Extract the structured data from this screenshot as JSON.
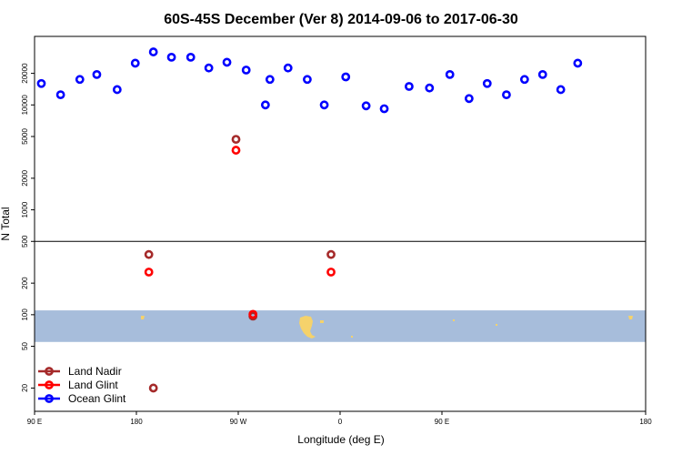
{
  "chart_data": {
    "type": "scatter",
    "title": "60S-45S December (Ver 8)   2014-09-06 to 2017-06-30",
    "xlabel": "Longitude (deg E)",
    "ylabel": "N Total",
    "y_scale": "log",
    "ylim": [
      12,
      45000
    ],
    "x_ticks": [
      "90 E",
      "180",
      "90 W",
      "0",
      "90 E",
      "180"
    ],
    "y_ticks": [
      "20",
      "50",
      "100",
      "200",
      "500",
      "1000",
      "2000",
      "5000",
      "10000",
      "20000"
    ],
    "y_tick_values": [
      20,
      50,
      100,
      200,
      500,
      1000,
      2000,
      5000,
      10000,
      20000
    ],
    "y_split": 500,
    "series": [
      {
        "name": "Land Nadir",
        "color": "#a52a2a",
        "points": [
          [
            -169,
            375
          ],
          [
            -92,
            4700
          ],
          [
            -77,
            97
          ],
          [
            -165,
            20
          ],
          [
            -8,
            375
          ]
        ]
      },
      {
        "name": "Land Glint",
        "color": "#ff0000",
        "points": [
          [
            -169,
            255
          ],
          [
            -92,
            3700
          ],
          [
            -77,
            101
          ],
          [
            -8,
            255
          ]
        ]
      },
      {
        "name": "Ocean Glint",
        "color": "#0000ff",
        "points": [
          [
            -264,
            16000
          ],
          [
            -247,
            12500
          ],
          [
            -230,
            17500
          ],
          [
            -215,
            19500
          ],
          [
            -197,
            14000
          ],
          [
            -181,
            25000
          ],
          [
            -165,
            32000
          ],
          [
            -149,
            28500
          ],
          [
            -132,
            28500
          ],
          [
            -116,
            22500
          ],
          [
            -100,
            25500
          ],
          [
            -83,
            21500
          ],
          [
            -66,
            10000
          ],
          [
            -62,
            17500
          ],
          [
            -46,
            22500
          ],
          [
            -29,
            17500
          ],
          [
            -14,
            10000
          ],
          [
            5,
            18500
          ],
          [
            23,
            9800
          ],
          [
            39,
            9200
          ],
          [
            61,
            15000
          ],
          [
            79,
            14500
          ],
          [
            97,
            19500
          ],
          [
            114,
            11500
          ],
          [
            130,
            16000
          ],
          [
            147,
            12500
          ],
          [
            163,
            17500
          ],
          [
            179,
            19500
          ],
          [
            195,
            14000
          ],
          [
            210,
            25000
          ]
        ]
      }
    ],
    "legend_position": "bottom-left",
    "ocean_band": [
      55,
      110
    ],
    "band_color": "#a7bddb",
    "land_color": "#f5d26b"
  }
}
